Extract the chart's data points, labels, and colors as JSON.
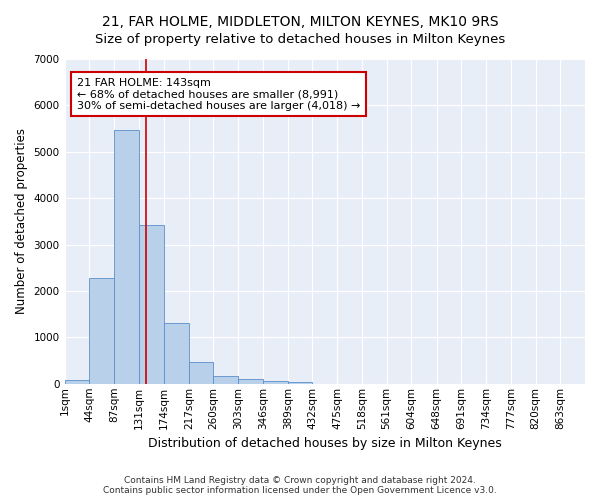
{
  "title": "21, FAR HOLME, MIDDLETON, MILTON KEYNES, MK10 9RS",
  "subtitle": "Size of property relative to detached houses in Milton Keynes",
  "xlabel": "Distribution of detached houses by size in Milton Keynes",
  "ylabel": "Number of detached properties",
  "bar_color": "#b8d0ea",
  "bar_edge_color": "#5b8fc9",
  "background_color": "#e8eef8",
  "bin_edges": [
    1,
    44,
    87,
    131,
    174,
    217,
    260,
    303,
    346,
    389,
    432,
    475,
    518,
    561,
    604,
    648,
    691,
    734,
    777,
    820,
    863
  ],
  "bin_labels": [
    "1sqm",
    "44sqm",
    "87sqm",
    "131sqm",
    "174sqm",
    "217sqm",
    "260sqm",
    "303sqm",
    "346sqm",
    "389sqm",
    "432sqm",
    "475sqm",
    "518sqm",
    "561sqm",
    "604sqm",
    "648sqm",
    "691sqm",
    "734sqm",
    "777sqm",
    "820sqm",
    "863sqm"
  ],
  "counts": [
    75,
    2270,
    5470,
    3430,
    1310,
    460,
    160,
    100,
    65,
    45,
    0,
    0,
    0,
    0,
    0,
    0,
    0,
    0,
    0,
    0
  ],
  "property_line_x": 143,
  "property_line_color": "#cc0000",
  "annotation_text": "21 FAR HOLME: 143sqm\n← 68% of detached houses are smaller (8,991)\n30% of semi-detached houses are larger (4,018) →",
  "annotation_box_color": "#cc0000",
  "ylim": [
    0,
    7000
  ],
  "footer_text": "Contains HM Land Registry data © Crown copyright and database right 2024.\nContains public sector information licensed under the Open Government Licence v3.0.",
  "title_fontsize": 10,
  "subtitle_fontsize": 9.5,
  "xlabel_fontsize": 9,
  "ylabel_fontsize": 8.5,
  "tick_fontsize": 7.5,
  "annotation_fontsize": 8
}
